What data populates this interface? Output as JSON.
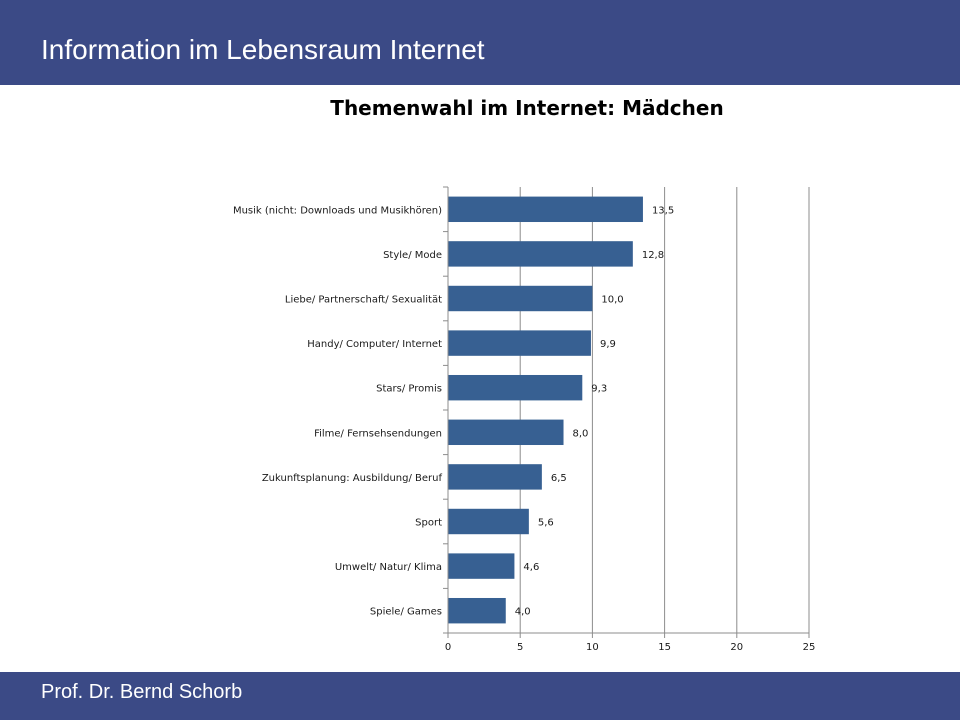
{
  "slide": {
    "title": "Information im Lebensraum Internet",
    "footer": "Prof. Dr. Bernd Schorb",
    "accent_color": "#3b4a86"
  },
  "chart_data": {
    "type": "bar",
    "orientation": "horizontal",
    "title": "Themenwahl im Internet: Mädchen",
    "xlabel": "",
    "ylabel": "",
    "categories": [
      "Musik (nicht: Downloads und Musikhören)",
      "Style/ Mode",
      "Liebe/ Partnerschaft/ Sexualität",
      "Handy/ Computer/ Internet",
      "Stars/ Promis",
      "Filme/ Fernsehsendungen",
      "Zukunftsplanung: Ausbildung/ Beruf",
      "Sport",
      "Umwelt/ Natur/ Klima",
      "Spiele/ Games"
    ],
    "values": [
      13.5,
      12.8,
      10.0,
      9.9,
      9.3,
      8.0,
      6.5,
      5.6,
      4.6,
      4.0
    ],
    "value_labels": [
      "13,5",
      "12,8",
      "10,0",
      "9,9",
      "9,3",
      "8,0",
      "6,5",
      "5,6",
      "4,6",
      "4,0"
    ],
    "xlim": [
      0,
      25
    ],
    "xticks": [
      "0",
      "5",
      "10",
      "15",
      "20",
      "25"
    ],
    "grid": true,
    "legend": "none",
    "bar_color": "#376092"
  }
}
